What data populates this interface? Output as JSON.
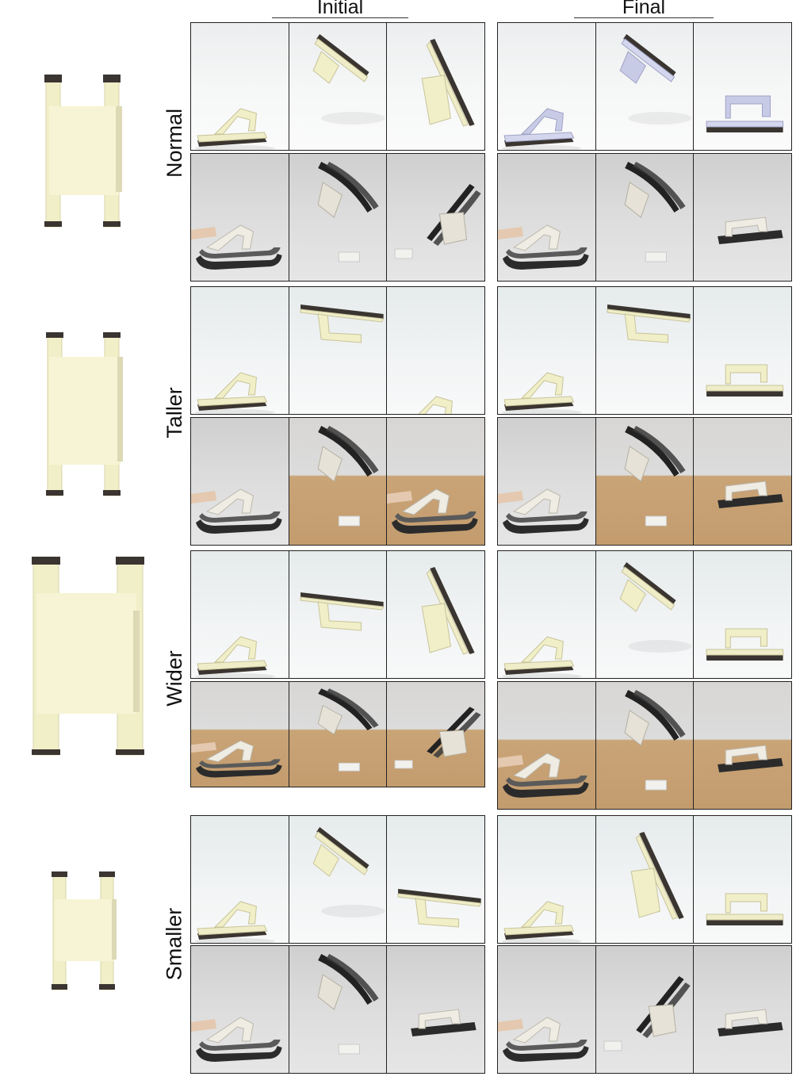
{
  "headers": {
    "initial": "Initial",
    "final": "Final"
  },
  "rows": [
    {
      "label": "Normal"
    },
    {
      "label": "Taller"
    },
    {
      "label": "Wider"
    },
    {
      "label": "Smaller"
    }
  ],
  "colors": {
    "cream": "#f1efc8",
    "dark_cap": "#3a3530",
    "real_black": "#2b2b2b",
    "cardboard": "#c39c6e",
    "sim_final_lilac": "#c8cbe6"
  }
}
